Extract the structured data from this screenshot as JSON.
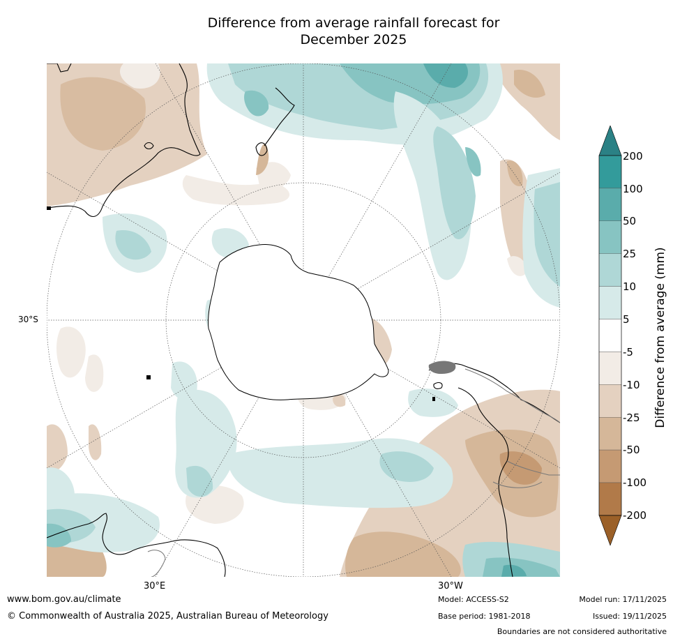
{
  "title_line1": "Difference from average rainfall forecast for",
  "title_line2": "December 2025",
  "map": {
    "projection": "south-polar-stereographic",
    "lat_label": "30°S",
    "lon_labels": {
      "left": "30°E",
      "right": "30°W"
    },
    "graticule_latitudes_deg": [
      -30,
      -60
    ],
    "meridian_spacing_deg": 30,
    "land_outline_color": "#000000",
    "graticule_color": "#555555"
  },
  "colorbar": {
    "title": "Difference from average (mm)",
    "tick_labels": [
      "200",
      "100",
      "50",
      "25",
      "10",
      "5",
      "-5",
      "-10",
      "-25",
      "-50",
      "-100",
      "-200"
    ],
    "band_colors_top_to_bottom": [
      "#2b8185",
      "#339b9b",
      "#5aacab",
      "#87c4c2",
      "#afd7d6",
      "#d6eae9",
      "#ffffff",
      "#f2ece6",
      "#e4d1c0",
      "#d5b799",
      "#c59a73",
      "#b17a49",
      "#9b6028"
    ]
  },
  "footer": {
    "url": "www.bom.gov.au/climate",
    "copyright": "© Commonwealth of Australia 2025, Australian Bureau of Meteorology",
    "model": "Model: ACCESS-S2",
    "base_period": "Base period: 1981-2018",
    "model_run": "Model run: 17/11/2025",
    "issued": "Issued: 19/11/2025",
    "disclaimer": "Boundaries are not considered authoritative"
  }
}
